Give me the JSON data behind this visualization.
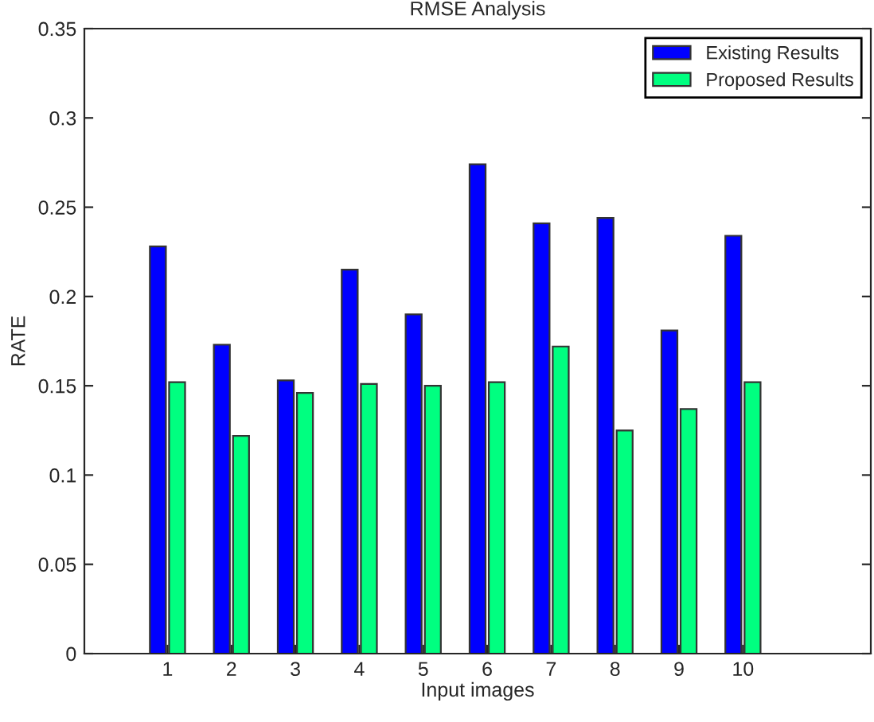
{
  "chart_data": {
    "type": "bar",
    "title": "RMSE Analysis",
    "xlabel": "Input images",
    "ylabel": "RATE",
    "categories": [
      "1",
      "2",
      "3",
      "4",
      "5",
      "6",
      "7",
      "8",
      "9",
      "10"
    ],
    "series": [
      {
        "name": "Existing Results",
        "color": "#0000ff",
        "values": [
          0.228,
          0.173,
          0.153,
          0.215,
          0.19,
          0.274,
          0.241,
          0.244,
          0.181,
          0.234
        ]
      },
      {
        "name": "Proposed Results",
        "color": "#00ff80",
        "values": [
          0.152,
          0.122,
          0.146,
          0.151,
          0.15,
          0.152,
          0.172,
          0.125,
          0.137,
          0.152
        ]
      }
    ],
    "ylim": [
      0,
      0.35
    ],
    "yticks": [
      0,
      0.05,
      0.1,
      0.15,
      0.2,
      0.25,
      0.3,
      0.35
    ],
    "legend": "top right",
    "grid": false
  }
}
